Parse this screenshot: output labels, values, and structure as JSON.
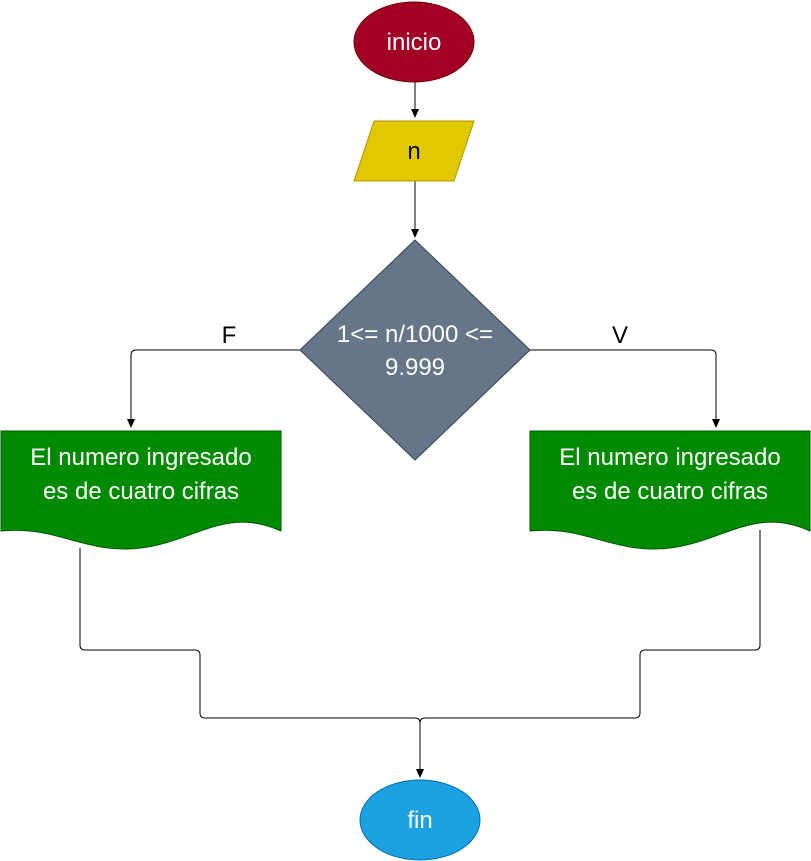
{
  "diagram": {
    "start": {
      "label": "inicio",
      "color": "#a20025"
    },
    "input": {
      "label": "n",
      "color": "#e3c800"
    },
    "decision": {
      "lines": [
        "1<= n/1000 <=",
        "9.999"
      ],
      "color": "#647687"
    },
    "branch_false": {
      "label": "F"
    },
    "branch_true": {
      "label": "V"
    },
    "output_left": {
      "lines": [
        "El numero ingresado",
        "es de cuatro cifras"
      ],
      "color": "#008a00"
    },
    "output_right": {
      "lines": [
        "El numero ingresado",
        "es de cuatro cifras"
      ],
      "color": "#008a00"
    },
    "end": {
      "label": "fin",
      "color": "#1ba1e2"
    }
  }
}
